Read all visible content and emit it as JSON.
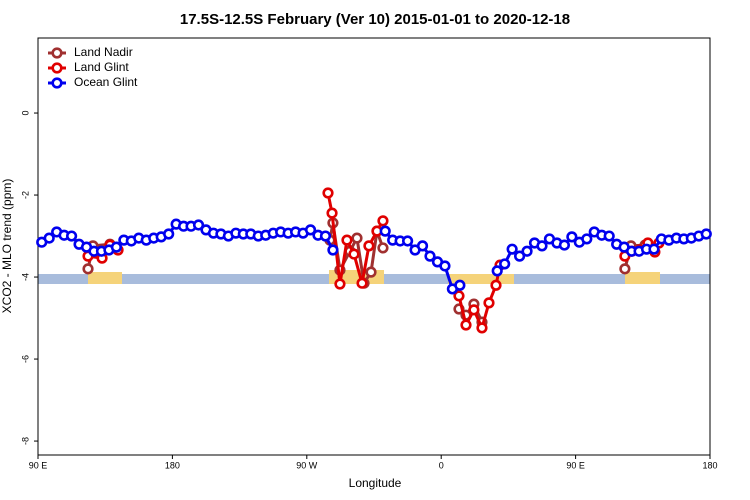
{
  "chart_data": {
    "type": "line",
    "title": "17.5S-12.5S February (Ver 10)   2015-01-01 to 2020-12-18",
    "x_label": "Longitude",
    "y_label": "XCO2 - MLO trend (ppm)",
    "xlim": [
      90,
      540
    ],
    "xticks": [
      {
        "value": 90,
        "label": "90 E"
      },
      {
        "value": 180,
        "label": "180"
      },
      {
        "value": 270,
        "label": "90 W"
      },
      {
        "value": 360,
        "label": "0"
      },
      {
        "value": 450,
        "label": "90 E"
      },
      {
        "value": 540,
        "label": "180"
      }
    ],
    "ylim": [
      -8.34,
      1.83
    ],
    "yticks": [
      0,
      -2,
      -4,
      -6,
      -8
    ],
    "legend": "top-left",
    "series": [
      {
        "name": "Land Nadir",
        "color": "#a03030",
        "x": [
          123.5,
          126.8,
          138.2,
          null,
          285.5,
          287.5,
          292.2,
          298.9,
          303.6,
          308.3,
          313,
          317,
          321,
          null,
          371.9,
          376.6,
          381.9,
          387.3,
          null,
          483,
          487.1,
          496.5
        ],
        "values": [
          -3.8,
          -3.24,
          -3.2,
          null,
          -3.1,
          -2.68,
          -3.83,
          -3.37,
          -3.05,
          -4.15,
          -3.88,
          -2.88,
          -3.29,
          null,
          -4.78,
          -4.93,
          -4.66,
          -5.1,
          null,
          -3.8,
          -3.24,
          -3.22
        ]
      },
      {
        "name": "Land Glint",
        "color": "#e00000",
        "x": [
          123.5,
          132.9,
          138.2,
          143.6,
          null,
          284.2,
          286.9,
          292.2,
          296.9,
          301.6,
          307,
          311.6,
          317,
          321,
          null,
          371.9,
          376.6,
          381.9,
          387.3,
          392,
          396.7,
          399.4,
          null,
          483,
          487.7,
          493.1,
          498.4,
          503.1,
          505.8
        ],
        "values": [
          -3.49,
          -3.54,
          -3.22,
          -3.34,
          null,
          -1.95,
          -2.44,
          -4.17,
          -3.1,
          -3.44,
          -4.15,
          -3.24,
          -2.88,
          -2.63,
          null,
          -4.46,
          -5.17,
          -4.8,
          -5.24,
          -4.63,
          -4.2,
          -3.71,
          null,
          -3.49,
          -3.37,
          -3.34,
          -3.17,
          -3.39,
          -3.17
        ]
      },
      {
        "name": "Ocean Glint",
        "color": "#0000ee",
        "x": [
          92.5,
          97.5,
          102.5,
          107.5,
          112.5,
          117.5,
          122.5,
          127.5,
          132.5,
          137.5,
          142.5,
          147.5,
          152.5,
          157.5,
          162.5,
          167.5,
          172.5,
          177.5,
          182.5,
          187.5,
          192.5,
          197.5,
          202.5,
          207.5,
          212.5,
          217.5,
          222.5,
          227.5,
          232.5,
          237.5,
          242.5,
          247.5,
          252.5,
          257.5,
          262.5,
          267.5,
          272.5,
          277.5,
          282.5,
          287.5,
          null,
          322.5,
          327.5,
          332.5,
          337.5,
          342.5,
          347.5,
          352.5,
          357.5,
          362.5,
          367.5,
          372.5,
          null,
          397.5,
          402.5,
          407.5,
          412.5,
          417.5,
          422.5,
          427.5,
          432.5,
          437.5,
          442.5,
          447.5,
          452.5,
          457.5,
          462.5,
          467.5,
          472.5,
          477.5,
          482.5,
          487.5,
          492.5,
          497.5,
          502.5,
          507.5,
          512.5,
          517.5,
          522.5,
          527.5,
          532.5,
          537.5
        ],
        "values": [
          -3.15,
          -3.05,
          -2.9,
          -2.98,
          -3.0,
          -3.2,
          -3.27,
          -3.37,
          -3.37,
          -3.34,
          -3.27,
          -3.1,
          -3.12,
          -3.05,
          -3.1,
          -3.05,
          -3.02,
          -2.95,
          -2.71,
          -2.76,
          -2.76,
          -2.73,
          -2.85,
          -2.93,
          -2.95,
          -3.0,
          -2.93,
          -2.95,
          -2.95,
          -3.0,
          -2.98,
          -2.93,
          -2.9,
          -2.93,
          -2.9,
          -2.93,
          -2.85,
          -2.98,
          -3.0,
          -3.34,
          null,
          -2.88,
          -3.1,
          -3.12,
          -3.12,
          -3.34,
          -3.24,
          -3.49,
          -3.63,
          -3.73,
          -4.29,
          -4.2,
          null,
          -3.85,
          -3.68,
          -3.32,
          -3.49,
          -3.37,
          -3.17,
          -3.24,
          -3.07,
          -3.17,
          -3.22,
          -3.02,
          -3.15,
          -3.07,
          -2.9,
          -2.98,
          -3.0,
          -3.2,
          -3.27,
          -3.37,
          -3.37,
          -3.32,
          -3.32,
          -3.07,
          -3.1,
          -3.05,
          -3.07,
          -3.05,
          -3.0,
          -2.95
        ]
      }
    ]
  }
}
